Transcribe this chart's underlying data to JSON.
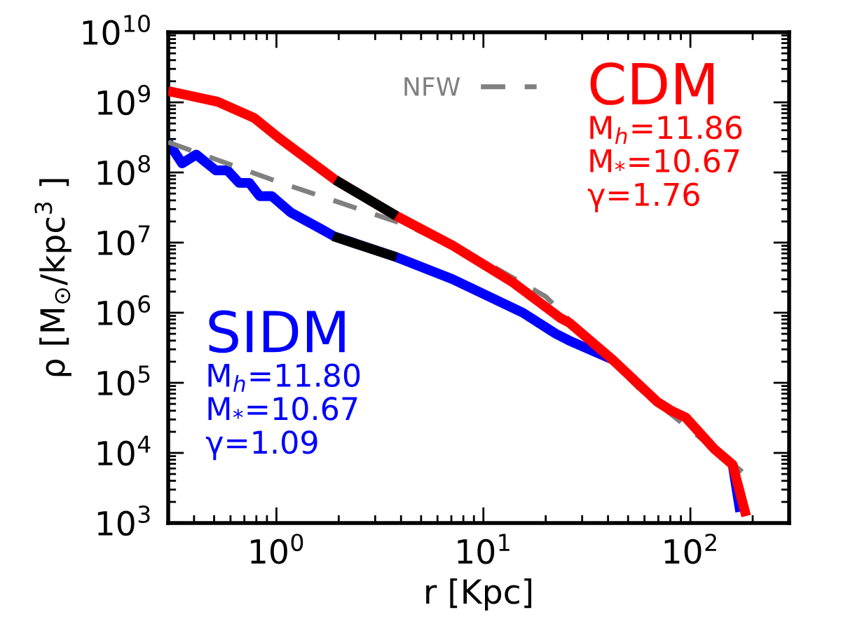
{
  "chart_data": {
    "type": "line",
    "xlabel": "r [Kpc]",
    "ylabel": "ρ [M$_{⊙}$/kpc$^{3}$ ]",
    "log": "xy",
    "xlim": [
      0.3,
      300
    ],
    "ylim": [
      1000,
      10000000000
    ],
    "xticks": [
      {
        "value": 1,
        "label": "10$^{0}$"
      },
      {
        "value": 10,
        "label": "10$^{1}$"
      },
      {
        "value": 100,
        "label": "10$^{2}$"
      }
    ],
    "yticks": [
      {
        "value": 1000,
        "label": "10$^{3}$"
      },
      {
        "value": 10000,
        "label": "10$^{4}$"
      },
      {
        "value": 100000,
        "label": "10$^{5}$"
      },
      {
        "value": 1000000,
        "label": "10$^{6}$"
      },
      {
        "value": 10000000,
        "label": "10$^{7}$"
      },
      {
        "value": 100000000,
        "label": "10$^{8}$"
      },
      {
        "value": 1000000000,
        "label": "10$^{9}$"
      },
      {
        "value": 10000000000,
        "label": "10$^{10}$"
      }
    ],
    "legend": "top",
    "grid": false,
    "series": [
      {
        "name": "SIDM",
        "color": "#0000ff",
        "x": [
          0.3,
          0.35,
          0.41,
          0.51,
          0.58,
          0.66,
          0.74,
          0.83,
          0.95,
          1.17,
          1.65,
          1.9,
          3.8,
          7.1,
          15.5,
          22.4,
          26,
          42,
          69,
          81,
          95,
          130,
          160,
          174
        ],
        "values": [
          270000000,
          135000000,
          180000000,
          107000000,
          107000000,
          71000000,
          71000000,
          46000000,
          46000000,
          27000000,
          15500000,
          12300000,
          6200000,
          3000000,
          1000000,
          500000,
          400000,
          215000,
          null,
          null,
          null,
          null,
          6800,
          1450
        ]
      },
      {
        "name": "NFW",
        "color": "#808080",
        "line_style": "dashed",
        "x": [
          0.3,
          1,
          4.2,
          10,
          20,
          56,
          178
        ],
        "values": [
          270000000,
          75000000,
          18000000,
          5500000,
          1700000,
          85000,
          5400
        ]
      },
      {
        "name": "CDM",
        "color": "#ff0000",
        "x": [
          0.3,
          0.52,
          0.78,
          1.03,
          1.93,
          3.8,
          7.1,
          13.9,
          23.4,
          26,
          42,
          69,
          81,
          95,
          130,
          160,
          186
        ],
        "values": [
          1450000000,
          1020000000,
          600000000,
          310000000,
          78000000,
          24000000,
          9100000,
          2700000,
          850000,
          720000,
          215000,
          54000,
          40000,
          32000,
          11500,
          6800,
          1260
        ]
      },
      {
        "color": "#000000",
        "x": [
          1.93,
          3.8
        ],
        "values": [
          78000000,
          24000000
        ]
      },
      {
        "color": "#000000",
        "x": [
          1.88,
          3.8
        ],
        "values": [
          12300000,
          6200000
        ]
      }
    ],
    "annotations": [
      "M$_{h}$=11.86",
      "M$_{*}$=10.67",
      "γ=1.76",
      "M$_{h}$=11.80",
      "M$_{*}$=10.67",
      "γ=1.09"
    ]
  }
}
